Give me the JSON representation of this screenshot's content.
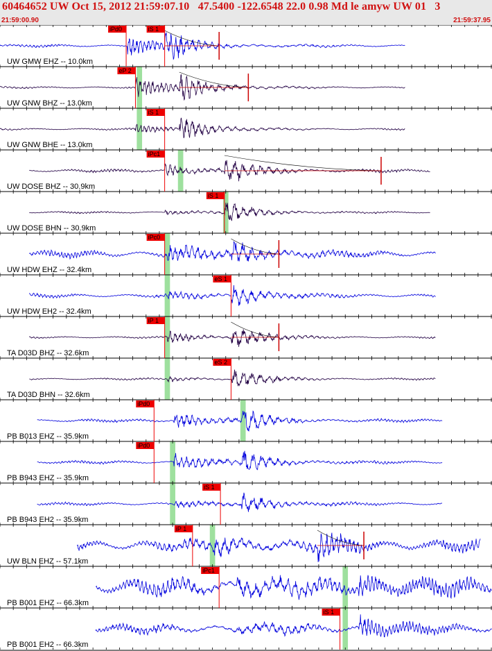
{
  "header": {
    "title": "60464652 UW Oct 15, 2012 21:59:07.10   47.5400 -122.6548 22.0 0.98 Md le amyw UW 01   3",
    "start_time": "21:59:00.90",
    "end_time": "21:59:37.95",
    "title_color": "#d01010"
  },
  "chart_data": {
    "type": "line",
    "x_unit": "s",
    "x_range": [
      0,
      37.05
    ],
    "tick_interval_s": 1,
    "colors": {
      "raw": "#0000dd",
      "filtered": "#220044",
      "pick_bg": "#ee0000",
      "arrival_band": "#9ee09e",
      "coda": "#cc0000"
    },
    "traces": [
      {
        "label": "UW GMW EHZ -- 10.0km",
        "color": "#0000dd",
        "start": 0,
        "end": 30.5,
        "noise": 0.07,
        "amp_p": 0.55,
        "amp_s": 0.8,
        "p": 9.6,
        "s": 12.4,
        "picks": [
          {
            "text": "iPd0",
            "t": 9.5
          },
          {
            "text": "iS 1",
            "t": 12.4
          }
        ],
        "coda_end": 16.5,
        "band": null
      },
      {
        "label": "UW GNW BHZ -- 13.0km",
        "color": "#220044",
        "start": 0,
        "end": 30.5,
        "noise": 0.05,
        "amp_p": 0.55,
        "amp_s": 0.8,
        "p": 10.2,
        "s": 13.5,
        "picks": [
          {
            "text": "eP 2",
            "t": 10.2
          }
        ],
        "coda_end": 18.7,
        "band": [
          10.3,
          10.7
        ]
      },
      {
        "label": "UW GNW BHE -- 13.0km",
        "color": "#220044",
        "start": 0,
        "end": 30.5,
        "noise": 0.05,
        "amp_p": 0.25,
        "amp_s": 0.7,
        "p": 10.2,
        "s": 13.5,
        "picks": [
          {
            "text": "iS 1",
            "t": 12.4
          }
        ],
        "coda_end": null,
        "band": [
          10.3,
          10.7
        ]
      },
      {
        "label": "UW DOSE BHZ -- 30.9km",
        "color": "#220044",
        "start": 2.2,
        "end": 32.4,
        "noise": 0.08,
        "amp_p": 0.35,
        "amp_s": 0.75,
        "p": 12.4,
        "s": 16.9,
        "picks": [
          {
            "text": "iPc1",
            "t": 12.4
          }
        ],
        "coda_end": 28.7,
        "band": [
          13.4,
          13.8
        ]
      },
      {
        "label": "UW DOSE BHN -- 30.9km",
        "color": "#220044",
        "start": 2.2,
        "end": 32.4,
        "noise": 0.05,
        "amp_p": 0.12,
        "amp_s": 0.7,
        "p": 12.4,
        "s": 16.9,
        "picks": [
          {
            "text": "iS 1",
            "t": 16.9
          }
        ],
        "coda_end": null,
        "band": [
          16.8,
          17.2
        ]
      },
      {
        "label": "UW HDW EHZ -- 32.4km",
        "color": "#0000dd",
        "start": 2.2,
        "end": 32.8,
        "noise": 0.18,
        "amp_p": 0.5,
        "amp_s": 0.7,
        "p": 12.6,
        "s": 17.4,
        "picks": [
          {
            "text": "iPc0",
            "t": 12.4
          }
        ],
        "coda_end": 21.0,
        "band": [
          12.4,
          12.8
        ]
      },
      {
        "label": "UW HDW EH2 -- 32.4km",
        "color": "#0000dd",
        "start": 2.2,
        "end": 32.8,
        "noise": 0.1,
        "amp_p": 0.15,
        "amp_s": 0.7,
        "p": 12.6,
        "s": 17.4,
        "picks": [
          {
            "text": "eS 1",
            "t": 17.4
          }
        ],
        "coda_end": null,
        "band": [
          12.4,
          12.8
        ]
      },
      {
        "label": "TA D03D BHZ -- 32.6km",
        "color": "#220044",
        "start": 2.2,
        "end": 32.8,
        "noise": 0.05,
        "amp_p": 0.3,
        "amp_s": 0.75,
        "p": 12.6,
        "s": 17.4,
        "picks": [
          {
            "text": "iP 1",
            "t": 12.4
          }
        ],
        "coda_end": 21.0,
        "band": [
          12.4,
          12.8
        ]
      },
      {
        "label": "TA D03D BHN -- 32.6km",
        "color": "#220044",
        "start": 2.2,
        "end": 32.8,
        "noise": 0.05,
        "amp_p": 0.12,
        "amp_s": 0.7,
        "p": 12.6,
        "s": 17.4,
        "picks": [
          {
            "text": "eS 2",
            "t": 17.4
          }
        ],
        "coda_end": null,
        "band": [
          12.4,
          12.8
        ]
      },
      {
        "label": "PB B013 EHZ -- 35.9km",
        "color": "#0000dd",
        "start": 2.8,
        "end": 33.3,
        "noise": 0.08,
        "amp_p": 0.5,
        "amp_s": 0.65,
        "p": 13.1,
        "s": 18.2,
        "picks": [
          {
            "text": "iPd0",
            "t": 11.6
          }
        ],
        "coda_end": null,
        "band": [
          18.1,
          18.5
        ]
      },
      {
        "label": "PB B943 EHZ -- 35.9km",
        "color": "#0000dd",
        "start": 2.8,
        "end": 33.3,
        "noise": 0.08,
        "amp_p": 0.5,
        "amp_s": 0.65,
        "p": 13.1,
        "s": 18.2,
        "picks": [
          {
            "text": "iPd0",
            "t": 11.6
          }
        ],
        "coda_end": null,
        "band": [
          12.8,
          13.2
        ]
      },
      {
        "label": "PB B943 EH2 -- 35.9km",
        "color": "#0000dd",
        "start": 2.8,
        "end": 33.3,
        "noise": 0.08,
        "amp_p": 0.15,
        "amp_s": 0.65,
        "p": 13.1,
        "s": 18.2,
        "picks": [
          {
            "text": "iS 1",
            "t": 16.6
          }
        ],
        "coda_end": null,
        "band": [
          12.8,
          13.2
        ]
      },
      {
        "label": "UW BLN EHZ -- 57.1km",
        "color": "#0000dd",
        "start": 5.8,
        "end": 36.2,
        "noise": 0.3,
        "amp_p": 0.5,
        "amp_s": 0.6,
        "p": 16.1,
        "s": 23.9,
        "picks": [
          {
            "text": "iP 1",
            "t": 14.5
          }
        ],
        "coda_end": 27.4,
        "band": [
          15.8,
          16.2
        ]
      },
      {
        "label": "PB B001 EHZ -- 66.3km",
        "color": "#0000dd",
        "start": 7.2,
        "end": 37.05,
        "noise": 0.45,
        "amp_p": 0.5,
        "amp_s": 0.6,
        "p": 17.8,
        "s": 27.0,
        "picks": [
          {
            "text": "iPc1",
            "t": 16.5
          }
        ],
        "coda_end": null,
        "band": [
          25.8,
          26.2
        ]
      },
      {
        "label": "PB B001 EH2 -- 66.3km",
        "color": "#0000dd",
        "start": 7.2,
        "end": 37.05,
        "noise": 0.25,
        "amp_p": 0.15,
        "amp_s": 0.65,
        "p": 17.8,
        "s": 27.0,
        "picks": [
          {
            "text": "iS 1",
            "t": 25.6
          }
        ],
        "coda_end": null,
        "band": [
          25.8,
          26.2
        ]
      }
    ]
  }
}
